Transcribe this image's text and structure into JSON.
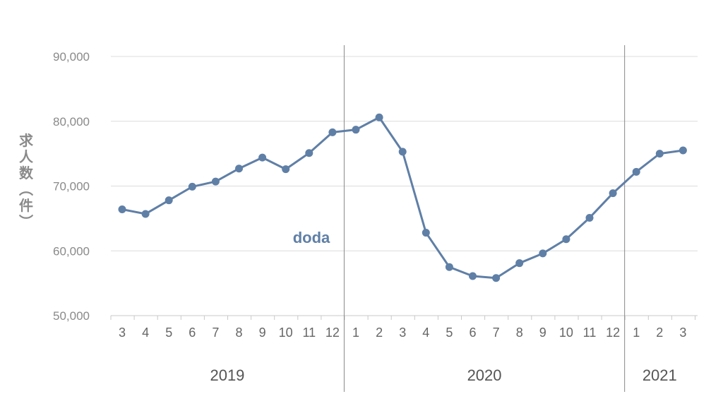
{
  "chart_data": {
    "type": "line",
    "ylabel": "求人数（件）",
    "ylabel_chars": [
      "求",
      "人",
      "数",
      "︵",
      "件",
      "︶"
    ],
    "yticks": [
      "50,000",
      "60,000",
      "70,000",
      "80,000",
      "90,000"
    ],
    "ytick_values": [
      50000,
      60000,
      70000,
      80000,
      90000
    ],
    "ylim": [
      50000,
      90000
    ],
    "grid": true,
    "x": [
      "3",
      "4",
      "5",
      "6",
      "7",
      "8",
      "9",
      "10",
      "11",
      "12",
      "1",
      "2",
      "3",
      "4",
      "5",
      "6",
      "7",
      "8",
      "9",
      "10",
      "11",
      "12",
      "1",
      "2",
      "3"
    ],
    "years": [
      {
        "label": "2019",
        "start_index": 0,
        "end_index": 9
      },
      {
        "label": "2020",
        "start_index": 10,
        "end_index": 21
      },
      {
        "label": "2021",
        "start_index": 22,
        "end_index": 24
      }
    ],
    "series": [
      {
        "name": "doda",
        "color": "#5f7fa6",
        "values": [
          66400,
          65700,
          67800,
          69900,
          70700,
          72700,
          74400,
          72600,
          75100,
          78300,
          78700,
          80600,
          75300,
          62800,
          57500,
          56100,
          55800,
          58100,
          59600,
          61800,
          65100,
          68900,
          72200,
          75000,
          75500
        ]
      }
    ]
  }
}
